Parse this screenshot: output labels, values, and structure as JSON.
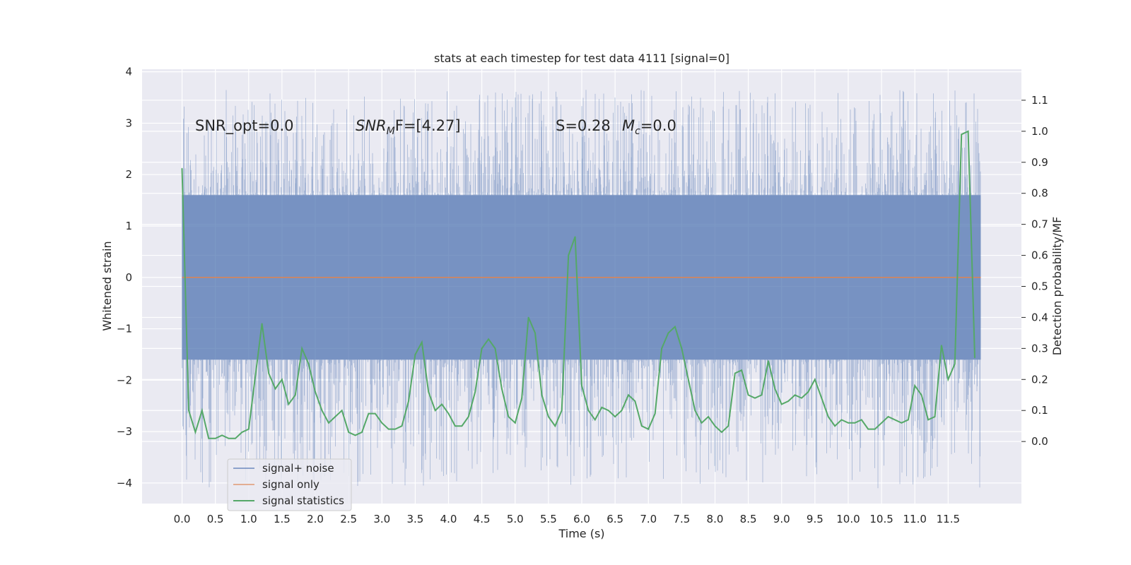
{
  "chart_data": {
    "type": "line",
    "title": "stats at each timestep for test data 4111 [signal=0]",
    "xlabel": "Time (s)",
    "ylabel_left": "Whitened strain",
    "ylabel_right": "Detection probability/MF",
    "xlim": [
      -0.6,
      12.6
    ],
    "ylim_left": [
      -4.4,
      4.05
    ],
    "ylim_right": [
      -0.2,
      1.2
    ],
    "x_ticks": [
      "0.0",
      "0.5",
      "1.0",
      "1.5",
      "2.0",
      "2.5",
      "3.0",
      "3.5",
      "4.0",
      "4.5",
      "5.0",
      "5.5",
      "6.0",
      "6.5",
      "7.0",
      "7.5",
      "8.0",
      "8.5",
      "9.0",
      "9.5",
      "10.0",
      "10.5",
      "11.0",
      "11.5"
    ],
    "y_ticks_left": [
      "−4",
      "−3",
      "−2",
      "−1",
      "0",
      "1",
      "2",
      "3",
      "4"
    ],
    "y_ticks_right": [
      "0.0",
      "0.1",
      "0.2",
      "0.3",
      "0.4",
      "0.5",
      "0.6",
      "0.7",
      "0.8",
      "0.9",
      "1.0",
      "1.1"
    ],
    "grid": true,
    "legend_position": "lower-left",
    "series": [
      {
        "name": "signal+ noise",
        "color": "#4c72b0",
        "axis": "left",
        "x_range": [
          0.0,
          11.99
        ],
        "band_low": -1.6,
        "band_high": 1.6,
        "peak_min": -4.1,
        "peak_max": 3.65
      },
      {
        "name": "signal only",
        "color": "#dd8452",
        "axis": "left",
        "x": [
          0.0,
          11.99
        ],
        "values": [
          0.0,
          0.0
        ]
      },
      {
        "name": "signal statistics",
        "color": "#55a868",
        "axis": "right",
        "x": [
          0.0,
          0.1,
          0.2,
          0.3,
          0.4,
          0.5,
          0.6,
          0.7,
          0.8,
          0.9,
          1.0,
          1.1,
          1.2,
          1.3,
          1.4,
          1.5,
          1.6,
          1.7,
          1.8,
          1.9,
          2.0,
          2.1,
          2.2,
          2.3,
          2.4,
          2.5,
          2.6,
          2.7,
          2.8,
          2.9,
          3.0,
          3.1,
          3.2,
          3.3,
          3.4,
          3.5,
          3.6,
          3.7,
          3.8,
          3.9,
          4.0,
          4.1,
          4.2,
          4.3,
          4.4,
          4.5,
          4.6,
          4.7,
          4.8,
          4.9,
          5.0,
          5.1,
          5.2,
          5.3,
          5.4,
          5.5,
          5.6,
          5.7,
          5.8,
          5.9,
          6.0,
          6.1,
          6.2,
          6.3,
          6.4,
          6.5,
          6.6,
          6.7,
          6.8,
          6.9,
          7.0,
          7.1,
          7.2,
          7.3,
          7.4,
          7.5,
          7.6,
          7.7,
          7.8,
          7.9,
          8.0,
          8.1,
          8.2,
          8.3,
          8.4,
          8.5,
          8.6,
          8.7,
          8.8,
          8.9,
          9.0,
          9.1,
          9.2,
          9.3,
          9.4,
          9.5,
          9.6,
          9.7,
          9.8,
          9.9,
          10.0,
          10.1,
          10.2,
          10.3,
          10.4,
          10.5,
          10.6,
          10.7,
          10.8,
          10.9,
          11.0,
          11.1,
          11.2,
          11.3,
          11.4,
          11.5,
          11.6,
          11.7,
          11.8,
          11.9
        ],
        "values": [
          0.88,
          0.1,
          0.03,
          0.1,
          0.01,
          0.01,
          0.02,
          0.01,
          0.01,
          0.03,
          0.04,
          0.21,
          0.38,
          0.22,
          0.17,
          0.2,
          0.12,
          0.15,
          0.3,
          0.25,
          0.16,
          0.1,
          0.06,
          0.08,
          0.1,
          0.03,
          0.02,
          0.03,
          0.09,
          0.09,
          0.06,
          0.04,
          0.04,
          0.05,
          0.13,
          0.28,
          0.32,
          0.16,
          0.1,
          0.12,
          0.09,
          0.05,
          0.05,
          0.08,
          0.16,
          0.3,
          0.33,
          0.3,
          0.17,
          0.08,
          0.06,
          0.14,
          0.4,
          0.35,
          0.15,
          0.08,
          0.05,
          0.1,
          0.6,
          0.66,
          0.18,
          0.1,
          0.07,
          0.11,
          0.1,
          0.08,
          0.1,
          0.15,
          0.13,
          0.05,
          0.04,
          0.09,
          0.3,
          0.35,
          0.37,
          0.3,
          0.2,
          0.1,
          0.06,
          0.08,
          0.05,
          0.03,
          0.05,
          0.22,
          0.23,
          0.15,
          0.14,
          0.15,
          0.26,
          0.17,
          0.12,
          0.13,
          0.15,
          0.14,
          0.16,
          0.2,
          0.14,
          0.08,
          0.05,
          0.07,
          0.06,
          0.06,
          0.07,
          0.04,
          0.04,
          0.06,
          0.08,
          0.07,
          0.06,
          0.07,
          0.18,
          0.15,
          0.07,
          0.08,
          0.31,
          0.2,
          0.25,
          0.99,
          1.0,
          0.27
        ]
      }
    ],
    "annotations": {
      "snr_opt": "SNR_opt=0.0",
      "snr_mf_prefix": "SNR",
      "snr_mf_sub": "M",
      "snr_mf_suffix": "F=[4.27]",
      "s_value": "S=0.28",
      "mc_prefix": "M",
      "mc_sub": "c",
      "mc_suffix": "=0.0"
    }
  }
}
